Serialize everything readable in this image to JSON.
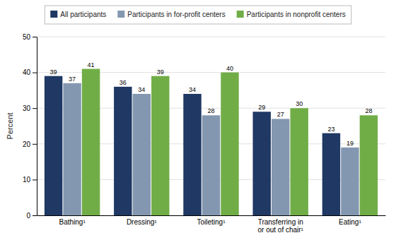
{
  "chart_data": {
    "type": "bar",
    "y_label": "Percent",
    "categories": [
      "Bathing¹",
      "Dressing¹",
      "Toileting¹",
      "Transferring in\nor out of chair¹",
      "Eating¹"
    ],
    "series": [
      {
        "name": "All participants",
        "color": "#1f3864",
        "values": [
          39,
          36,
          34,
          29,
          23
        ]
      },
      {
        "name": "Participants in for-profit centers",
        "color": "#8497b0",
        "values": [
          37,
          34,
          28,
          27,
          19
        ]
      },
      {
        "name": "Participants in nonprofit centers",
        "color": "#70ad47",
        "values": [
          41,
          39,
          40,
          30,
          28
        ]
      }
    ],
    "ylim": [
      0,
      50
    ],
    "yticks": [
      0,
      10,
      20,
      30,
      40,
      50
    ],
    "grid": true,
    "legend": "top",
    "data_labels": true
  }
}
